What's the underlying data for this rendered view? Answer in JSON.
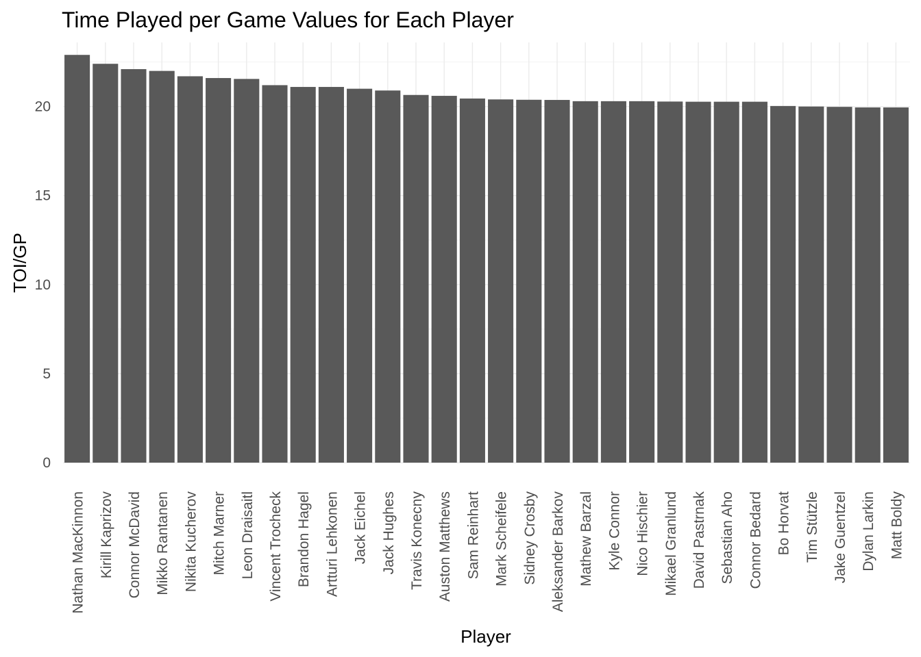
{
  "chart_data": {
    "type": "bar",
    "title": "Time Played per Game Values for Each Player",
    "xlabel": "Player",
    "ylabel": "TOI/GP",
    "ylim": [
      0,
      23.6
    ],
    "yticks": [
      0,
      5,
      10,
      15,
      20
    ],
    "grid": true,
    "bar_color": "#595959",
    "categories": [
      "Nathan MacKinnon",
      "Kirill Kaprizov",
      "Connor McDavid",
      "Mikko Rantanen",
      "Nikita Kucherov",
      "Mitch Marner",
      "Leon Draisaitl",
      "Vincent Trocheck",
      "Brandon Hagel",
      "Artturi Lehkonen",
      "Jack Eichel",
      "Jack Hughes",
      "Travis Konecny",
      "Auston Matthews",
      "Sam Reinhart",
      "Mark Scheifele",
      "Sidney Crosby",
      "Aleksander Barkov",
      "Mathew Barzal",
      "Kyle Connor",
      "Nico Hischier",
      "Mikael Granlund",
      "David Pastrnak",
      "Sebastian Aho",
      "Connor Bedard",
      "Bo Horvat",
      "Tim Stützle",
      "Jake Guentzel",
      "Dylan Larkin",
      "Matt Boldy"
    ],
    "values": [
      22.9,
      22.4,
      22.1,
      22.0,
      21.7,
      21.6,
      21.55,
      21.2,
      21.1,
      21.1,
      21.0,
      20.9,
      20.65,
      20.6,
      20.45,
      20.4,
      20.38,
      20.37,
      20.3,
      20.3,
      20.3,
      20.28,
      20.27,
      20.27,
      20.27,
      20.03,
      20.0,
      19.98,
      19.95,
      19.95
    ]
  }
}
